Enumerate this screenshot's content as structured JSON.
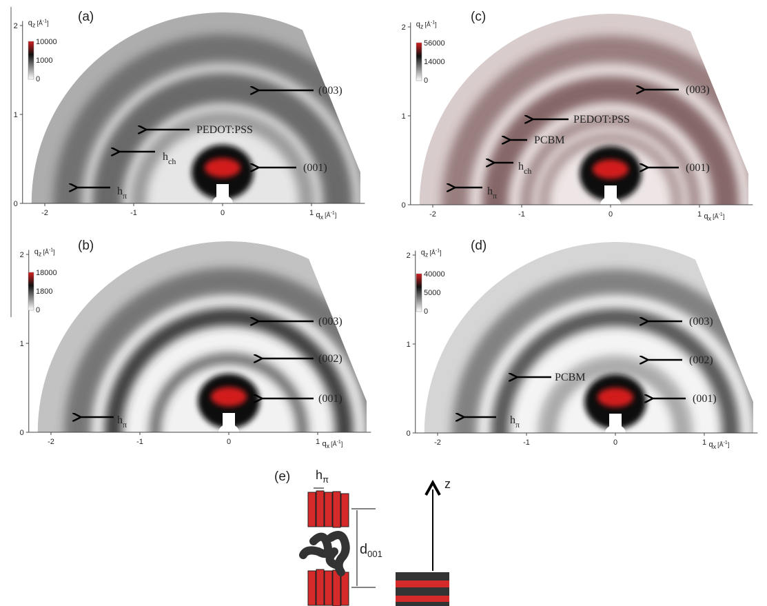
{
  "panels": [
    {
      "label": "(a)",
      "xticks": [
        "-2",
        "-1",
        "0",
        "1"
      ],
      "yticks": [
        "0",
        "1",
        "2"
      ],
      "colorbar": [
        "10000",
        "1000",
        "0"
      ],
      "annotations": [
        {
          "text": "(003)"
        },
        {
          "text": "PEDOT:PSS"
        },
        {
          "text": "h",
          "sub": "ch"
        },
        {
          "text": "(001)"
        },
        {
          "text": "h",
          "sub": "π"
        }
      ]
    },
    {
      "label": "(b)",
      "xticks": [
        "-2",
        "-1",
        "0",
        "1"
      ],
      "yticks": [
        "0",
        "1",
        "2"
      ],
      "colorbar": [
        "18000",
        "1800",
        "0"
      ],
      "annotations": [
        {
          "text": "(003)"
        },
        {
          "text": "(002)"
        },
        {
          "text": "(001)"
        },
        {
          "text": "h",
          "sub": "π"
        }
      ]
    },
    {
      "label": "(c)",
      "xticks": [
        "-2",
        "-1",
        "0",
        "1"
      ],
      "yticks": [
        "0",
        "1",
        "2"
      ],
      "colorbar": [
        "56000",
        "14000",
        "0"
      ],
      "annotations": [
        {
          "text": "(003)"
        },
        {
          "text": "PEDOT:PSS"
        },
        {
          "text": "PCBM"
        },
        {
          "text": "h",
          "sub": "ch"
        },
        {
          "text": "(001)"
        },
        {
          "text": "h",
          "sub": "π"
        }
      ]
    },
    {
      "label": "(d)",
      "xticks": [
        "-2",
        "-1",
        "0",
        "1"
      ],
      "yticks": [
        "0",
        "1",
        "2"
      ],
      "colorbar": [
        "40000",
        "5000",
        "0"
      ],
      "annotations": [
        {
          "text": "(003)"
        },
        {
          "text": "(002)"
        },
        {
          "text": "PCBM"
        },
        {
          "text": "(001)"
        },
        {
          "text": "h",
          "sub": "π"
        }
      ]
    }
  ],
  "axis_labels": {
    "x": {
      "q": "q",
      "sub": "x",
      "unit": "[Å",
      "exp": "-1",
      "close": "]"
    },
    "y": {
      "q": "q",
      "sub": "z",
      "unit": "[Å",
      "exp": "-1",
      "close": "]"
    }
  },
  "schematic": {
    "label": "(e)",
    "h": "h",
    "h_sub": "π",
    "d": "d",
    "d_sub": "001",
    "z": "z"
  }
}
